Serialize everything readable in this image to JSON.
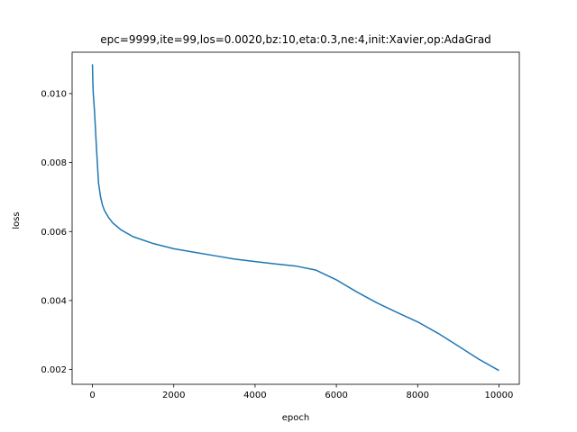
{
  "chart_data": {
    "type": "line",
    "title": "epc=9999,ite=99,los=0.0020,bz:10,eta:0.3,ne:4,init:Xavier,op:AdaGrad",
    "xlabel": "epoch",
    "ylabel": "loss",
    "xlim": [
      -500,
      10500
    ],
    "ylim": [
      0.00157,
      0.0112
    ],
    "xticks": [
      0,
      2000,
      4000,
      6000,
      8000,
      10000
    ],
    "xtick_labels": [
      "0",
      "2000",
      "4000",
      "6000",
      "8000",
      "10000"
    ],
    "yticks": [
      0.002,
      0.004,
      0.006,
      0.008,
      0.01
    ],
    "ytick_labels": [
      "0.002",
      "0.004",
      "0.006",
      "0.008",
      "0.010"
    ],
    "grid": false,
    "line_color": "#1f77b4",
    "series": [
      {
        "x": [
          0,
          10,
          20,
          50,
          100,
          150,
          200,
          250,
          300,
          400,
          500,
          700,
          1000,
          1500,
          2000,
          2500,
          3000,
          3500,
          4000,
          4500,
          5000,
          5500,
          6000,
          6500,
          7000,
          7500,
          8000,
          8500,
          9000,
          9500,
          10000
        ],
        "y": [
          0.01085,
          0.0103,
          0.01,
          0.0095,
          0.0084,
          0.0074,
          0.007,
          0.00675,
          0.0066,
          0.0064,
          0.00625,
          0.00605,
          0.00585,
          0.00565,
          0.0055,
          0.0054,
          0.0053,
          0.0052,
          0.00513,
          0.00506,
          0.005,
          0.00488,
          0.0046,
          0.00425,
          0.00393,
          0.00365,
          0.00338,
          0.00305,
          0.00268,
          0.0023,
          0.00197
        ]
      }
    ]
  }
}
